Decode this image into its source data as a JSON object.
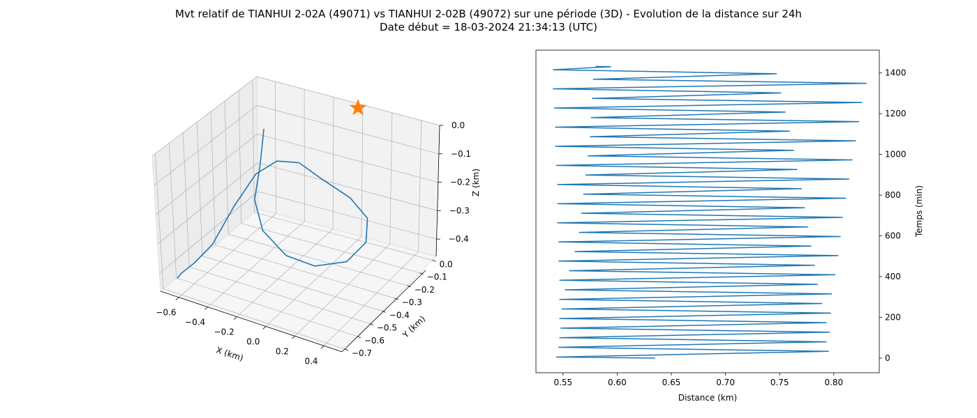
{
  "figure": {
    "title_line1": "Mvt relatif de TIANHUI 2-02A (49071) vs TIANHUI 2-02B (49072) sur une période (3D) - Evolution de la distance sur 24h",
    "title_line2": "Date début = 18-03-2024 21:34:13 (UTC)"
  },
  "colors": {
    "line": "#1f77b4",
    "marker": "#ff7f0e"
  },
  "chart_data": [
    {
      "type": "line3d",
      "xlabel": "X (km)",
      "ylabel": "Y (km)",
      "zlabel": "Z (km)",
      "xticks": [
        "−0.6",
        "−0.4",
        "−0.2",
        "0.0",
        "0.2",
        "0.4"
      ],
      "yticks": [
        "0.0",
        "−0.1",
        "−0.2",
        "−0.3",
        "−0.4",
        "−0.5",
        "−0.6",
        "−0.7"
      ],
      "zticks": [
        "0.0",
        "−0.1",
        "−0.2",
        "−0.3",
        "−0.4"
      ],
      "xlim": [
        -0.65,
        0.45
      ],
      "ylim": [
        -0.72,
        0.03
      ],
      "zlim": [
        -0.46,
        0.0
      ],
      "marker": {
        "type": "star",
        "x": 0.0,
        "y": 0.0,
        "z": 0.0
      },
      "trajectory": {
        "x": [
          -0.52,
          -0.49,
          -0.46,
          -0.33,
          -0.13,
          0.08,
          0.27,
          0.35,
          0.32,
          0.19,
          -0.02,
          -0.2,
          -0.36,
          -0.5,
          -0.55,
          -0.57,
          -0.6,
          -0.62,
          -0.61
        ],
        "y": [
          -0.08,
          -0.15,
          -0.23,
          -0.33,
          -0.4,
          -0.44,
          -0.43,
          -0.38,
          -0.33,
          -0.3,
          -0.26,
          -0.21,
          -0.18,
          -0.17,
          -0.28,
          -0.42,
          -0.52,
          -0.6,
          -0.64
        ],
        "z": [
          -0.12,
          -0.22,
          -0.3,
          -0.35,
          -0.38,
          -0.37,
          -0.33,
          -0.27,
          -0.21,
          -0.17,
          -0.15,
          -0.14,
          -0.17,
          -0.24,
          -0.32,
          -0.4,
          -0.43,
          -0.44,
          -0.44
        ]
      }
    },
    {
      "type": "line",
      "xlabel": "Distance (km)",
      "ylabel": "Temps (min)",
      "xlim": [
        0.525,
        0.842
      ],
      "ylim": [
        -72,
        1512
      ],
      "xticks": [
        0.55,
        0.6,
        0.65,
        0.7,
        0.75,
        0.8
      ],
      "xtick_labels": [
        "0.55",
        "0.60",
        "0.65",
        "0.70",
        "0.75",
        "0.80"
      ],
      "yticks": [
        0,
        200,
        400,
        600,
        800,
        1000,
        1200,
        1400
      ],
      "yaxis_side": "right",
      "series": [
        {
          "x": [
            0.635,
            0.544,
            0.795,
            0.546,
            0.793,
            0.547,
            0.796,
            0.548,
            0.793,
            0.547,
            0.797,
            0.549,
            0.789,
            0.547,
            0.798,
            0.552,
            0.785,
            0.547,
            0.801,
            0.556,
            0.782,
            0.546,
            0.804,
            0.561,
            0.779,
            0.546,
            0.806,
            0.565,
            0.776,
            0.545,
            0.808,
            0.567,
            0.773,
            0.545,
            0.811,
            0.569,
            0.77,
            0.545,
            0.814,
            0.571,
            0.766,
            0.544,
            0.817,
            0.573,
            0.763,
            0.543,
            0.82,
            0.575,
            0.759,
            0.543,
            0.823,
            0.576,
            0.755,
            0.542,
            0.826,
            0.577,
            0.751,
            0.541,
            0.83,
            0.578,
            0.747,
            0.541,
            0.594,
            0.58
          ],
          "y": [
            0,
            5,
            33,
            53,
            80,
            100,
            127,
            147,
            174,
            194,
            221,
            241,
            268,
            288,
            315,
            335,
            362,
            382,
            409,
            429,
            456,
            476,
            503,
            523,
            550,
            570,
            597,
            617,
            644,
            664,
            691,
            711,
            738,
            758,
            785,
            805,
            832,
            852,
            879,
            899,
            926,
            946,
            973,
            993,
            1020,
            1040,
            1067,
            1087,
            1114,
            1134,
            1161,
            1181,
            1208,
            1228,
            1255,
            1275,
            1302,
            1322,
            1349,
            1369,
            1396,
            1416,
            1431,
            1432
          ]
        }
      ]
    }
  ]
}
